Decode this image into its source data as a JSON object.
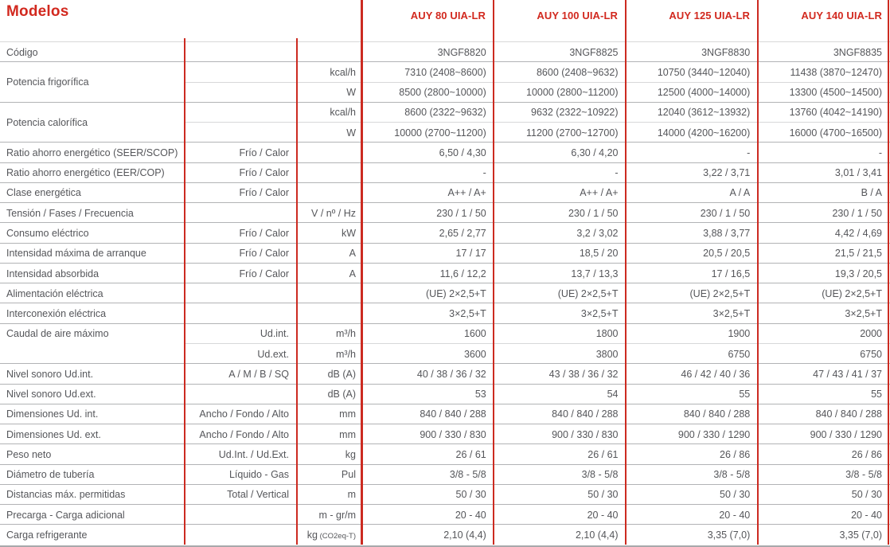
{
  "header": {
    "title": "Modelos",
    "models": [
      "AUY 80 UIA-LR",
      "AUY 100 UIA-LR",
      "AUY 125 UIA-LR",
      "AUY 140 UIA-LR"
    ]
  },
  "colors": {
    "accent_red": "#d2291f",
    "text_gray": "#55565a"
  },
  "table": {
    "rows": [
      {
        "label": "Código",
        "sub": "",
        "unit": "",
        "values": [
          "3NGF8820",
          "3NGF8825",
          "3NGF8830",
          "3NGF8835"
        ],
        "sep": "full"
      },
      {
        "label": "Potencia frigorífica",
        "label_span": 2,
        "sub": "",
        "unit": "kcal/h",
        "values": [
          "7310 (2408~8600)",
          "8600 (2408~9632)",
          "10750 (3440~12040)",
          "11438 (3870~12470)"
        ],
        "sep": "partial"
      },
      {
        "label": "",
        "sub": "",
        "unit": "W",
        "values": [
          "8500 (2800~10000)",
          "10000 (2800~11200)",
          "12500 (4000~14000)",
          "13300 (4500~14500)"
        ],
        "sep": "full"
      },
      {
        "label": "Potencia calorífica",
        "label_span": 2,
        "sub": "",
        "unit": "kcal/h",
        "values": [
          "8600 (2322~9632)",
          "9632 (2322~10922)",
          "12040 (3612~13932)",
          "13760 (4042~14190)"
        ],
        "sep": "partial"
      },
      {
        "label": "",
        "sub": "",
        "unit": "W",
        "values": [
          "10000 (2700~11200)",
          "11200 (2700~12700)",
          "14000 (4200~16200)",
          "16000 (4700~16500)"
        ],
        "sep": "full"
      },
      {
        "label": "Ratio ahorro energético (SEER/SCOP)",
        "sub": "Frío / Calor",
        "unit": "",
        "values": [
          "6,50 / 4,30",
          "6,30 / 4,20",
          "-",
          "-"
        ],
        "sep": "full"
      },
      {
        "label": "Ratio ahorro energético (EER/COP)",
        "sub": "Frío / Calor",
        "unit": "",
        "values": [
          "-",
          "-",
          "3,22 / 3,71",
          "3,01 / 3,41"
        ],
        "sep": "full"
      },
      {
        "label": "Clase energética",
        "sub": "Frío / Calor",
        "unit": "",
        "values": [
          "A++ / A+",
          "A++ / A+",
          "A / A",
          "B / A"
        ],
        "sep": "full"
      },
      {
        "label": "Tensión / Fases / Frecuencia",
        "sub": "",
        "unit": "V / nº / Hz",
        "values": [
          "230 / 1 / 50",
          "230 / 1 / 50",
          "230 / 1 / 50",
          "230 / 1 / 50"
        ],
        "sep": "full"
      },
      {
        "label": "Consumo eléctrico",
        "sub": "Frío / Calor",
        "unit": "kW",
        "values": [
          "2,65 / 2,77",
          "3,2 / 3,02",
          "3,88 / 3,77",
          "4,42 / 4,69"
        ],
        "sep": "full"
      },
      {
        "label": "Intensidad máxima de arranque",
        "sub": "Frío / Calor",
        "unit": "A",
        "values": [
          "17 / 17",
          "18,5 / 20",
          "20,5 / 20,5",
          "21,5 / 21,5"
        ],
        "sep": "full"
      },
      {
        "label": "Intensidad absorbida",
        "sub": "Frío / Calor",
        "unit": "A",
        "values": [
          "11,6 / 12,2",
          "13,7 / 13,3",
          "17 / 16,5",
          "19,3 / 20,5"
        ],
        "sep": "full"
      },
      {
        "label": "Alimentación eléctrica",
        "sub": "",
        "unit": "",
        "values": [
          "(UE) 2×2,5+T",
          "(UE) 2×2,5+T",
          "(UE) 2×2,5+T",
          "(UE) 2×2,5+T"
        ],
        "sep": "full"
      },
      {
        "label": "Interconexión eléctrica",
        "sub": "",
        "unit": "",
        "values": [
          "3×2,5+T",
          "3×2,5+T",
          "3×2,5+T",
          "3×2,5+T"
        ],
        "sep": "full"
      },
      {
        "label": "Caudal de aire máximo",
        "sub": "Ud.int.",
        "unit": "m³/h",
        "values": [
          "1600",
          "1800",
          "1900",
          "2000"
        ],
        "sep": "partial"
      },
      {
        "label": "",
        "sub": "Ud.ext.",
        "unit": "m³/h",
        "values": [
          "3600",
          "3800",
          "6750",
          "6750"
        ],
        "sep": "full"
      },
      {
        "label": "Nivel sonoro Ud.int.",
        "sub": "A / M / B / SQ",
        "unit": "dB (A)",
        "values": [
          "40 / 38 / 36 / 32",
          "43 / 38 / 36 / 32",
          "46 / 42 / 40 / 36",
          "47 / 43 / 41 / 37"
        ],
        "sep": "full"
      },
      {
        "label": "Nivel sonoro Ud.ext.",
        "sub": "",
        "unit": "dB (A)",
        "values": [
          "53",
          "54",
          "55",
          "55"
        ],
        "sep": "full"
      },
      {
        "label": "Dimensiones Ud. int.",
        "sub": "Ancho / Fondo / Alto",
        "unit": "mm",
        "values": [
          "840 / 840 / 288",
          "840 / 840 / 288",
          "840 / 840 / 288",
          "840 / 840 / 288"
        ],
        "sep": "full"
      },
      {
        "label": "Dimensiones Ud. ext.",
        "sub": "Ancho / Fondo / Alto",
        "unit": "mm",
        "values": [
          "900 / 330 / 830",
          "900 / 330 / 830",
          "900 / 330 / 1290",
          "900 / 330 / 1290"
        ],
        "sep": "full"
      },
      {
        "label": "Peso neto",
        "sub": "Ud.Int. / Ud.Ext.",
        "unit": "kg",
        "values": [
          "26 / 61",
          "26 / 61",
          "26 / 86",
          "26 / 86"
        ],
        "sep": "full"
      },
      {
        "label": "Diámetro de tubería",
        "sub": "Líquido - Gas",
        "unit": "Pul",
        "values": [
          "3/8 - 5/8",
          "3/8 - 5/8",
          "3/8 - 5/8",
          "3/8 - 5/8"
        ],
        "sep": "full"
      },
      {
        "label": "Distancias máx. permitidas",
        "sub": "Total / Vertical",
        "unit": "m",
        "values": [
          "50 / 30",
          "50 / 30",
          "50 / 30",
          "50 / 30"
        ],
        "sep": "full"
      },
      {
        "label": "Precarga - Carga adicional",
        "sub": "",
        "unit": "m - gr/m",
        "values": [
          "20 - 40",
          "20 - 40",
          "20 - 40",
          "20 - 40"
        ],
        "sep": "full"
      },
      {
        "label": "Carga refrigerante",
        "sub": "",
        "unit": "kg",
        "unit_small": "(CO2eq-T)",
        "values": [
          "2,10 (4,4)",
          "2,10 (4,4)",
          "3,35 (7,0)",
          "3,35 (7,0)"
        ],
        "sep": "none"
      }
    ]
  }
}
